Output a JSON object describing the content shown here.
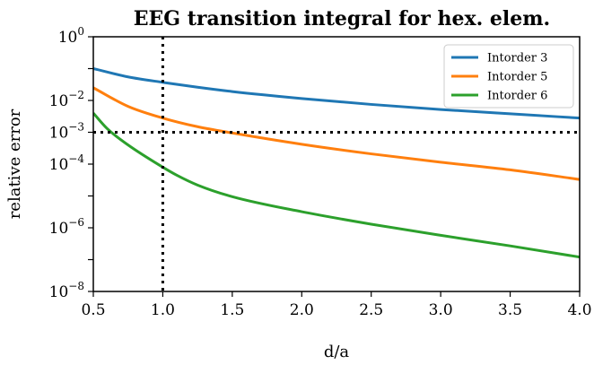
{
  "chart_data": {
    "type": "line",
    "title": "EEG transition integral for hex. elem.",
    "xlabel": "d/a",
    "ylabel": "relative error",
    "xlim": [
      0.5,
      4.0
    ],
    "ylim": [
      1e-08,
      1
    ],
    "yscale": "log",
    "grid": false,
    "legend_position": "top-right",
    "xticks": [
      0.5,
      1.0,
      1.5,
      2.0,
      2.5,
      3.0,
      3.5,
      4.0
    ],
    "xtick_labels": [
      "0.5",
      "1.0",
      "1.5",
      "2.0",
      "2.5",
      "3.0",
      "3.5",
      "4.0"
    ],
    "yticks": [
      {
        "value": 1,
        "base": "10",
        "exp": "0"
      },
      {
        "value": 0.01,
        "base": "10",
        "exp": "−2"
      },
      {
        "value": 0.001,
        "base": "10",
        "exp": "−3"
      },
      {
        "value": 0.0001,
        "base": "10",
        "exp": "−4"
      },
      {
        "value": 1e-06,
        "base": "10",
        "exp": "−6"
      },
      {
        "value": 1e-08,
        "base": "10",
        "exp": "−8"
      }
    ],
    "reference_lines": [
      {
        "orientation": "vertical",
        "value": 1.0,
        "style": "dotted",
        "color": "#000000"
      },
      {
        "orientation": "horizontal",
        "value": 0.001,
        "style": "dotted",
        "color": "#000000"
      }
    ],
    "series": [
      {
        "name": "Intorder 3",
        "color": "#1f77b4",
        "x": [
          0.5,
          0.75,
          1.0,
          1.25,
          1.5,
          2.0,
          2.5,
          3.0,
          3.5,
          4.0
        ],
        "y": [
          0.1,
          0.055,
          0.037,
          0.026,
          0.019,
          0.0115,
          0.0075,
          0.0052,
          0.0038,
          0.0028
        ]
      },
      {
        "name": "Intorder 5",
        "color": "#ff7f0e",
        "x": [
          0.5,
          0.75,
          1.0,
          1.25,
          1.5,
          2.0,
          2.5,
          3.0,
          3.5,
          4.0
        ],
        "y": [
          0.025,
          0.0065,
          0.0028,
          0.0015,
          0.00095,
          0.00042,
          0.00021,
          0.000115,
          6.6e-05,
          3.3e-05
        ]
      },
      {
        "name": "Intorder 6",
        "color": "#2ca02c",
        "x": [
          0.5,
          0.6,
          0.75,
          1.0,
          1.1,
          1.25,
          1.5,
          2.0,
          2.5,
          3.0,
          3.5,
          4.0
        ],
        "y": [
          0.004,
          0.0013,
          0.0004,
          8e-05,
          4.5e-05,
          2.2e-05,
          9.5e-06,
          3.2e-06,
          1.3e-06,
          5.8e-07,
          2.7e-07,
          1.2e-07
        ]
      }
    ]
  }
}
